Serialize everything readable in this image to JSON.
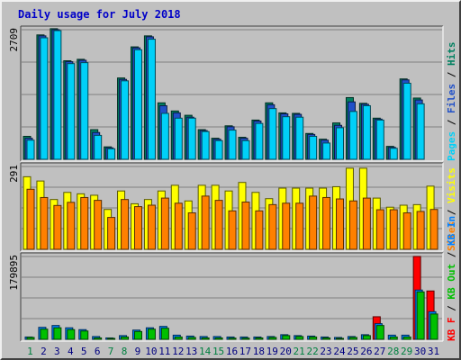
{
  "title": "Daily usage for July 2018",
  "colors": {
    "pages": "#00d0f8",
    "files": "#2050c8",
    "hits": "#008060",
    "visits": "#ffff00",
    "sites": "#ff8000",
    "kbin": "#0080ff",
    "kbout": "#00c000",
    "kbf": "#ff0000",
    "weekday_label": "#000080",
    "weekend_label": "#008040"
  },
  "chart_data": [
    {
      "type": "bar",
      "name": "hits-files-pages",
      "y_max_label": "2709",
      "ylim": [
        0,
        2709
      ],
      "legend": [
        "Pages",
        "Files",
        "Hits"
      ],
      "categories": [
        "1",
        "2",
        "3",
        "4",
        "5",
        "6",
        "7",
        "8",
        "9",
        "10",
        "11",
        "12",
        "13",
        "14",
        "15",
        "16",
        "17",
        "18",
        "19",
        "20",
        "21",
        "22",
        "23",
        "24",
        "25",
        "26",
        "27",
        "28",
        "29",
        "30",
        "31"
      ],
      "series": [
        {
          "name": "Hits",
          "values": [
            480,
            2600,
            2730,
            2060,
            2090,
            620,
            260,
            1700,
            2350,
            2580,
            1180,
            1010,
            920,
            620,
            440,
            700,
            460,
            820,
            1180,
            970,
            960,
            540,
            420,
            760,
            1290,
            1170,
            860,
            270,
            1680,
            1280,
            0
          ]
        },
        {
          "name": "Files",
          "values": [
            440,
            2580,
            2710,
            2040,
            2070,
            560,
            240,
            1670,
            2330,
            2560,
            1120,
            970,
            880,
            600,
            420,
            680,
            440,
            800,
            1140,
            950,
            940,
            520,
            400,
            710,
            1200,
            1150,
            840,
            250,
            1660,
            1240,
            0
          ]
        },
        {
          "name": "Pages",
          "values": [
            400,
            2540,
            2690,
            2000,
            2020,
            500,
            220,
            1640,
            2290,
            2510,
            960,
            860,
            860,
            580,
            390,
            610,
            390,
            750,
            1060,
            890,
            880,
            480,
            340,
            660,
            1000,
            1120,
            820,
            230,
            1590,
            1160,
            0
          ]
        }
      ]
    },
    {
      "type": "bar",
      "name": "visits-sites",
      "y_max_label": "291",
      "ylim": [
        0,
        291
      ],
      "legend": [
        "Sites",
        "Visits"
      ],
      "categories": [
        "1",
        "2",
        "3",
        "4",
        "5",
        "6",
        "7",
        "8",
        "9",
        "10",
        "11",
        "12",
        "13",
        "14",
        "15",
        "16",
        "17",
        "18",
        "19",
        "20",
        "21",
        "22",
        "23",
        "24",
        "25",
        "26",
        "27",
        "28",
        "29",
        "30",
        "31"
      ],
      "series": [
        {
          "name": "Visits",
          "values": [
            255,
            240,
            175,
            200,
            195,
            190,
            140,
            205,
            160,
            175,
            205,
            225,
            170,
            225,
            225,
            205,
            235,
            200,
            178,
            215,
            215,
            215,
            215,
            220,
            285,
            285,
            180,
            148,
            155,
            157,
            222
          ]
        },
        {
          "name": "Sites",
          "values": [
            211,
            182,
            154,
            165,
            182,
            172,
            112,
            175,
            150,
            155,
            180,
            162,
            128,
            187,
            172,
            135,
            166,
            135,
            157,
            162,
            162,
            187,
            182,
            177,
            170,
            180,
            139,
            139,
            128,
            133,
            140
          ]
        }
      ]
    },
    {
      "type": "bar",
      "name": "kbin-kbout",
      "y_max_label": "179895",
      "ylim": [
        0,
        179895
      ],
      "legend": [
        "KB F",
        "KB Out",
        "KB In"
      ],
      "categories": [
        "1",
        "2",
        "3",
        "4",
        "5",
        "6",
        "7",
        "8",
        "9",
        "10",
        "11",
        "12",
        "13",
        "14",
        "15",
        "16",
        "17",
        "18",
        "19",
        "20",
        "21",
        "22",
        "23",
        "24",
        "25",
        "26",
        "27",
        "28",
        "29",
        "30",
        "31"
      ],
      "series": [
        {
          "name": "KB F",
          "values": [
            0,
            0,
            0,
            0,
            0,
            0,
            0,
            0,
            0,
            0,
            0,
            0,
            0,
            0,
            0,
            0,
            0,
            0,
            0,
            0,
            0,
            0,
            0,
            0,
            0,
            0,
            49000,
            0,
            0,
            180000,
            105000
          ]
        },
        {
          "name": "KB In",
          "values": [
            5000,
            26000,
            30000,
            25000,
            21000,
            6000,
            3000,
            8000,
            20000,
            25000,
            28000,
            9000,
            7000,
            6000,
            6000,
            5000,
            5000,
            5000,
            6000,
            10000,
            8000,
            7000,
            5000,
            4000,
            6000,
            10000,
            34000,
            9000,
            9000,
            107000,
            60000
          ]
        },
        {
          "name": "KB Out",
          "values": [
            4000,
            22000,
            25000,
            21000,
            18000,
            3000,
            1500,
            5000,
            17000,
            22000,
            24000,
            5000,
            4000,
            3000,
            3000,
            2500,
            2500,
            3000,
            4000,
            8000,
            6000,
            5000,
            3000,
            2000,
            4000,
            8000,
            30000,
            5000,
            5000,
            103000,
            55000
          ]
        }
      ]
    }
  ],
  "weekends": [
    "1",
    "7",
    "8",
    "14",
    "15",
    "21",
    "22",
    "28",
    "29"
  ]
}
